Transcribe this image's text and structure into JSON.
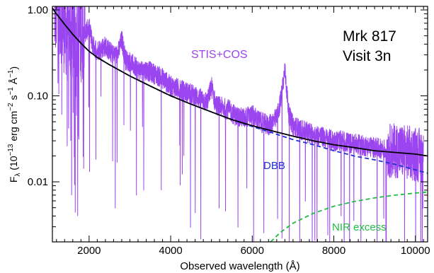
{
  "chart_data": {
    "type": "line",
    "title": "",
    "xlabel": "Observed wavelength (Å)",
    "ylabel": {
      "parts": [
        "F",
        "λ",
        " (10",
        "−13",
        " erg cm",
        "−2",
        " s",
        "−1",
        " Å",
        "−1",
        ")"
      ]
    },
    "x_scale": "linear",
    "y_scale": "log",
    "xlim": [
      1100,
      10300
    ],
    "ylim": [
      0.002,
      1.1
    ],
    "x_ticks": [
      2000,
      4000,
      6000,
      8000,
      10000
    ],
    "x_tick_labels": [
      "2000",
      "4000",
      "6000",
      "8000",
      "10000"
    ],
    "y_ticks": [
      1.0,
      0.1,
      0.01
    ],
    "y_tick_labels": [
      "1.00",
      "0.10",
      "0.01"
    ],
    "grid": false,
    "legend": "none",
    "annotations": [
      {
        "text": "Mrk 817",
        "position": "top-right"
      },
      {
        "text": "Visit 3n",
        "position": "top-right"
      }
    ],
    "series": [
      {
        "name": "STIS+COS",
        "style": "noisy-line",
        "color": "#9b45f0",
        "x": [
          1150,
          1200,
          1230,
          1300,
          1400,
          1500,
          1600,
          1700,
          1800,
          1900,
          2000,
          2100,
          2200,
          2300,
          2400,
          2500,
          2600,
          2700,
          2800,
          2900,
          3000,
          3200,
          3400,
          3600,
          3800,
          4000,
          4200,
          4400,
          4600,
          4800,
          4900,
          5000,
          5100,
          5200,
          5400,
          5600,
          5800,
          6000,
          6200,
          6400,
          6600,
          6700,
          6800,
          6900,
          7000,
          7200,
          7400,
          7600,
          7800,
          8000,
          8200,
          8400,
          8600,
          8800,
          9000,
          9200,
          9400,
          9600,
          9800,
          10000,
          10200
        ],
        "y": [
          1.0,
          0.98,
          1.4,
          0.9,
          0.6,
          0.55,
          0.52,
          0.58,
          0.5,
          0.55,
          0.62,
          0.38,
          0.34,
          0.36,
          0.38,
          0.33,
          0.3,
          0.3,
          0.45,
          0.26,
          0.25,
          0.2,
          0.2,
          0.18,
          0.16,
          0.13,
          0.12,
          0.11,
          0.1,
          0.09,
          0.085,
          0.13,
          0.08,
          0.075,
          0.07,
          0.058,
          0.055,
          0.06,
          0.05,
          0.045,
          0.055,
          0.09,
          0.2,
          0.06,
          0.045,
          0.04,
          0.037,
          0.035,
          0.032,
          0.03,
          0.03,
          0.028,
          0.027,
          0.026,
          0.025,
          0.024,
          0.023,
          0.023,
          0.022,
          0.021,
          0.02
        ]
      },
      {
        "name": "",
        "style": "solid",
        "color": "#000000",
        "x": [
          1100,
          1200,
          1400,
          1600,
          1800,
          2000,
          2200,
          2500,
          3000,
          3500,
          4000,
          4500,
          5000,
          5500,
          6000,
          6500,
          7000,
          7500,
          8000,
          8500,
          9000,
          9500,
          10000,
          10300
        ],
        "y": [
          1.05,
          0.9,
          0.68,
          0.52,
          0.41,
          0.33,
          0.28,
          0.23,
          0.17,
          0.13,
          0.1,
          0.08,
          0.065,
          0.053,
          0.045,
          0.039,
          0.034,
          0.03,
          0.027,
          0.025,
          0.023,
          0.022,
          0.021,
          0.02
        ]
      },
      {
        "name": "DBB",
        "style": "dashed",
        "color": "#1f2fd6",
        "x": [
          1100,
          1200,
          1400,
          1600,
          1800,
          2000,
          2200,
          2500,
          3000,
          3500,
          4000,
          4500,
          5000,
          5500,
          6000,
          6500,
          7000,
          7500,
          8000,
          8500,
          9000,
          9500,
          10000,
          10300
        ],
        "y": [
          1.05,
          0.9,
          0.68,
          0.52,
          0.41,
          0.33,
          0.28,
          0.23,
          0.17,
          0.13,
          0.1,
          0.08,
          0.065,
          0.053,
          0.044,
          0.037,
          0.031,
          0.027,
          0.023,
          0.02,
          0.018,
          0.016,
          0.0138,
          0.0126
        ]
      },
      {
        "name": "NIR excess",
        "style": "dashed",
        "color": "#22bb44",
        "x": [
          6450,
          6700,
          7000,
          7500,
          8000,
          8500,
          9000,
          9500,
          10000,
          10300
        ],
        "y": [
          0.002,
          0.0026,
          0.0033,
          0.0043,
          0.0052,
          0.0059,
          0.0065,
          0.007,
          0.0074,
          0.0076
        ]
      }
    ]
  }
}
